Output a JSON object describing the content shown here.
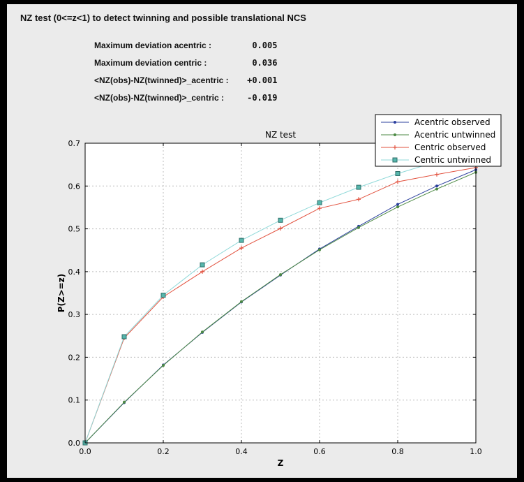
{
  "header": {
    "title": "NZ test (0<=z<1) to detect twinning and possible translational NCS"
  },
  "stats": {
    "rows": [
      {
        "label": "Maximum deviation acentric :",
        "value": "0.005"
      },
      {
        "label": "Maximum deviation centric :",
        "value": "0.036"
      },
      {
        "label": "<NZ(obs)-NZ(twinned)>_acentric :",
        "value": "+0.001"
      },
      {
        "label": "<NZ(obs)-NZ(twinned)>_centric :",
        "value": "-0.019"
      }
    ]
  },
  "chart_data": {
    "type": "line",
    "title": "NZ test",
    "xlabel": "Z",
    "ylabel": "P(Z>=z)",
    "xlim": [
      0.0,
      1.0
    ],
    "ylim": [
      0.0,
      0.7
    ],
    "grid": true,
    "legend_position": "top-right",
    "xticks": [
      0.0,
      0.2,
      0.4,
      0.6,
      0.8,
      1.0
    ],
    "xtick_labels": [
      "0.0",
      "0.2",
      "0.4",
      "0.6",
      "0.8",
      "1.0"
    ],
    "yticks": [
      0.0,
      0.1,
      0.2,
      0.3,
      0.4,
      0.5,
      0.6,
      0.7
    ],
    "ytick_labels": [
      "0.0",
      "0.1",
      "0.2",
      "0.3",
      "0.4",
      "0.5",
      "0.6",
      "0.7"
    ],
    "x": [
      0.0,
      0.1,
      0.2,
      0.3,
      0.4,
      0.5,
      0.6,
      0.7,
      0.8,
      0.9,
      1.0
    ],
    "series": [
      {
        "name": "Acentric observed",
        "color": "#2b3f9e",
        "marker": "dot",
        "values": [
          0.0,
          0.094,
          0.182,
          0.258,
          0.329,
          0.392,
          0.453,
          0.506,
          0.557,
          0.6,
          0.638
        ]
      },
      {
        "name": "Acentric untwinned",
        "color": "#4d8a44",
        "marker": "dot",
        "values": [
          0.0,
          0.095,
          0.181,
          0.259,
          0.33,
          0.393,
          0.451,
          0.503,
          0.551,
          0.593,
          0.632
        ]
      },
      {
        "name": "Centric observed",
        "color": "#e2513e",
        "marker": "plus",
        "values": [
          0.0,
          0.245,
          0.341,
          0.4,
          0.455,
          0.501,
          0.548,
          0.569,
          0.61,
          0.627,
          0.643
        ]
      },
      {
        "name": "Centric untwinned",
        "color": "#56b6ac",
        "line_color": "#8fd9d9",
        "marker_edge": "#2e6e68",
        "marker": "square",
        "values": [
          0.0,
          0.248,
          0.345,
          0.416,
          0.473,
          0.52,
          0.561,
          0.597,
          0.629,
          0.657,
          0.683
        ]
      }
    ]
  }
}
